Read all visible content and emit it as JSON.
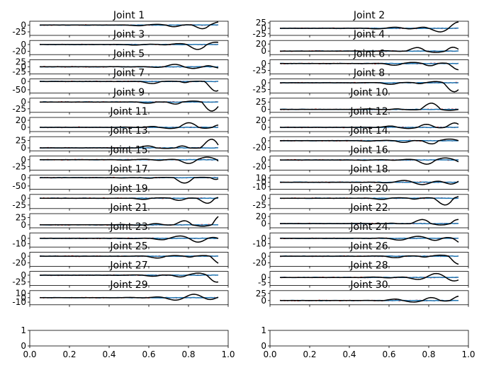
{
  "chart_data": {
    "type": "line",
    "layout": "15 rows x 2 columns of small line plots, plus an empty bottom axis in each column",
    "x_ticks": [
      "0.0",
      "0.2",
      "0.4",
      "0.6",
      "0.8",
      "1.0"
    ],
    "xlim": [
      0,
      1
    ],
    "series_styles": [
      {
        "role": "red dashed",
        "color": "#d62728"
      },
      {
        "role": "blue solid",
        "color": "#1f77b4"
      },
      {
        "role": "black solid",
        "color": "#000000"
      }
    ],
    "panels": [
      {
        "title": "Joint 1",
        "y_ticks": [
          "0",
          "-25"
        ],
        "ylim": [
          -38,
          14
        ],
        "peak": 10,
        "trough": -25
      },
      {
        "title": "Joint 2",
        "y_ticks": [
          "25",
          "0",
          "-25"
        ],
        "ylim": [
          -32,
          32
        ],
        "peak": 25,
        "trough": -22
      },
      {
        "title": "Joint 3",
        "y_ticks": [
          "0",
          "-20"
        ],
        "ylim": [
          -30,
          12
        ],
        "peak": 8,
        "trough": -18
      },
      {
        "title": "Joint 4",
        "y_ticks": [
          "20",
          "0"
        ],
        "ylim": [
          -10,
          30
        ],
        "peak": 22,
        "trough": -5
      },
      {
        "title": "Joint 5",
        "y_ticks": [
          "25",
          "0",
          "-25"
        ],
        "ylim": [
          -35,
          35
        ],
        "peak": 25,
        "trough": -15
      },
      {
        "title": "Joint 6",
        "y_ticks": [
          "0",
          "-25"
        ],
        "ylim": [
          -38,
          14
        ],
        "peak": 10,
        "trough": -28
      },
      {
        "title": "Joint 7",
        "y_ticks": [
          "0",
          "-50"
        ],
        "ylim": [
          -70,
          15
        ],
        "peak": 5,
        "trough": -55
      },
      {
        "title": "Joint 8",
        "y_ticks": [
          "0",
          "-25"
        ],
        "ylim": [
          -38,
          14
        ],
        "peak": 8,
        "trough": -30
      },
      {
        "title": "Joint 9",
        "y_ticks": [
          "0",
          "-25"
        ],
        "ylim": [
          -38,
          14
        ],
        "peak": 5,
        "trough": -35
      },
      {
        "title": "Joint 10",
        "y_ticks": [
          "25",
          "0"
        ],
        "ylim": [
          -10,
          38
        ],
        "peak": 30,
        "trough": -5
      },
      {
        "title": "Joint 11",
        "y_ticks": [
          "20",
          "0"
        ],
        "ylim": [
          -12,
          28
        ],
        "peak": 22,
        "trough": -8
      },
      {
        "title": "Joint 12",
        "y_ticks": [
          "20",
          "0"
        ],
        "ylim": [
          -12,
          28
        ],
        "peak": 22,
        "trough": -8
      },
      {
        "title": "Joint 13",
        "y_ticks": [
          "25",
          "0"
        ],
        "ylim": [
          -10,
          38
        ],
        "peak": 35,
        "trough": -5
      },
      {
        "title": "Joint 14",
        "y_ticks": [
          "0",
          "-20"
        ],
        "ylim": [
          -30,
          12
        ],
        "peak": 5,
        "trough": -25
      },
      {
        "title": "Joint 15",
        "y_ticks": [
          "0",
          "-25"
        ],
        "ylim": [
          -38,
          14
        ],
        "peak": 10,
        "trough": -25
      },
      {
        "title": "Joint 16",
        "y_ticks": [
          "0",
          "-20"
        ],
        "ylim": [
          -30,
          12
        ],
        "peak": 8,
        "trough": -20
      },
      {
        "title": "Joint 17",
        "y_ticks": [
          "0",
          "-50"
        ],
        "ylim": [
          -70,
          15
        ],
        "peak": 5,
        "trough": -55
      },
      {
        "title": "Joint 18",
        "y_ticks": [
          "10",
          "0",
          "-10"
        ],
        "ylim": [
          -16,
          16
        ],
        "peak": 12,
        "trough": -12
      },
      {
        "title": "Joint 19",
        "y_ticks": [
          "0",
          "-25"
        ],
        "ylim": [
          -38,
          14
        ],
        "peak": 5,
        "trough": -30
      },
      {
        "title": "Joint 20",
        "y_ticks": [
          "0",
          "-25"
        ],
        "ylim": [
          -38,
          14
        ],
        "peak": 8,
        "trough": -30
      },
      {
        "title": "Joint 21",
        "y_ticks": [
          "25",
          "0"
        ],
        "ylim": [
          -10,
          38
        ],
        "peak": 35,
        "trough": -5
      },
      {
        "title": "Joint 22",
        "y_ticks": [
          "20",
          "0"
        ],
        "ylim": [
          -12,
          28
        ],
        "peak": 22,
        "trough": -5
      },
      {
        "title": "Joint 23",
        "y_ticks": [
          "0",
          "-10"
        ],
        "ylim": [
          -16,
          10
        ],
        "peak": 8,
        "trough": -12
      },
      {
        "title": "Joint 24",
        "y_ticks": [
          "0",
          "-10"
        ],
        "ylim": [
          -16,
          10
        ],
        "peak": 8,
        "trough": -12
      },
      {
        "title": "Joint 25",
        "y_ticks": [
          "0",
          "-20"
        ],
        "ylim": [
          -30,
          12
        ],
        "peak": 5,
        "trough": -20
      },
      {
        "title": "Joint 26",
        "y_ticks": [
          "0",
          "-20"
        ],
        "ylim": [
          -30,
          12
        ],
        "peak": 5,
        "trough": -20
      },
      {
        "title": "Joint 27",
        "y_ticks": [
          "0",
          "-25"
        ],
        "ylim": [
          -38,
          14
        ],
        "peak": 10,
        "trough": -25
      },
      {
        "title": "Joint 28",
        "y_ticks": [
          "0",
          "-5"
        ],
        "ylim": [
          -8,
          6
        ],
        "peak": 5,
        "trough": -5
      },
      {
        "title": "Joint 29",
        "y_ticks": [
          "10",
          "0",
          "-10"
        ],
        "ylim": [
          -16,
          16
        ],
        "peak": 12,
        "trough": -12
      },
      {
        "title": "Joint 30",
        "y_ticks": [
          "25",
          "0"
        ],
        "ylim": [
          -15,
          35
        ],
        "peak": 25,
        "trough": -12
      }
    ],
    "bottom_axes": {
      "y_ticks": [
        "1",
        "0"
      ],
      "ylim": [
        0,
        1
      ]
    }
  }
}
